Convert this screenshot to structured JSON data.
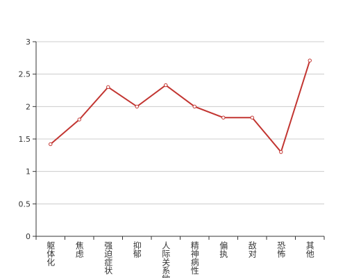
{
  "chart_data": {
    "type": "line",
    "categories": [
      "躯体化",
      "焦虑",
      "强迫症状",
      "抑郁",
      "人际关系敏感",
      "精神病性",
      "偏执",
      "敌对",
      "恐怖",
      "其他"
    ],
    "series": [
      {
        "color": "#c23531",
        "values": [
          1.42,
          1.8,
          2.3,
          2.0,
          2.33,
          2.0,
          1.83,
          1.83,
          1.3,
          2.71
        ]
      }
    ],
    "ylim": [
      0,
      3
    ],
    "yticks": [
      0,
      0.5,
      1,
      1.5,
      2,
      2.5,
      3
    ],
    "grid": true
  }
}
